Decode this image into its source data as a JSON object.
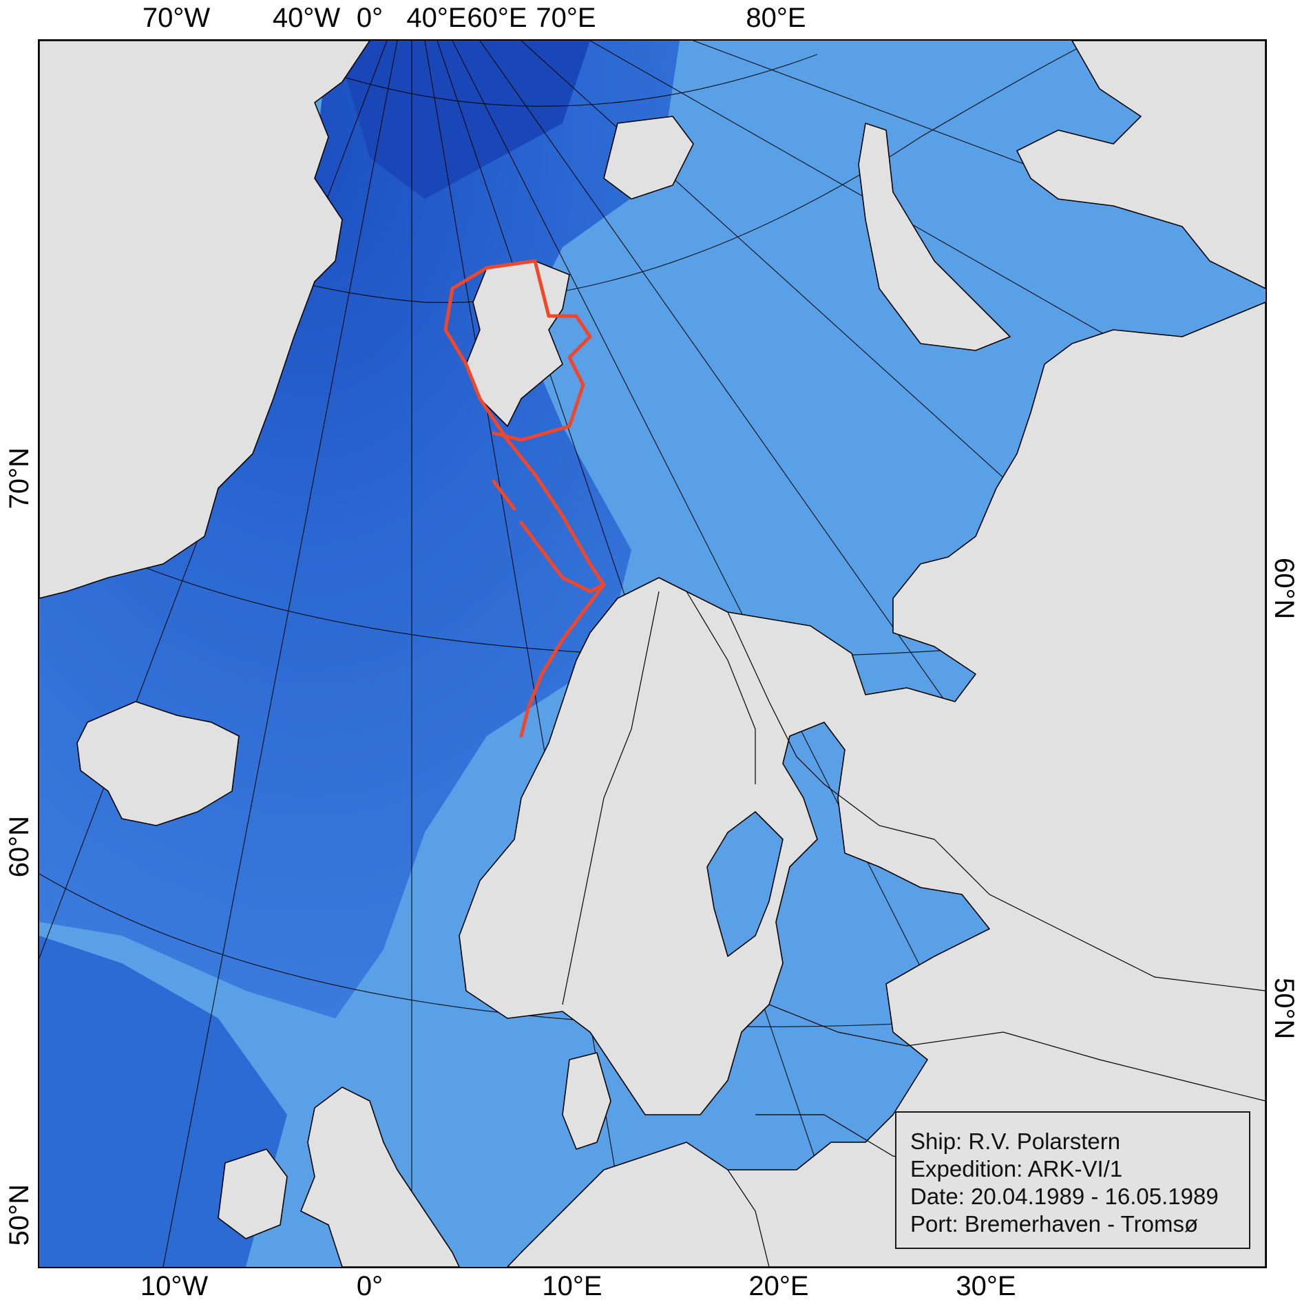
{
  "labels": {
    "top_lon": [
      "70°W",
      "40°W",
      "0°",
      "40°E",
      "60°E",
      "70°E",
      "80°E"
    ],
    "bottom_lon": [
      "10°W",
      "0°",
      "10°E",
      "20°E",
      "30°E"
    ],
    "left_lat": [
      "70°N",
      "60°N",
      "50°N"
    ],
    "right_lat": [
      "60°N",
      "50°N"
    ]
  },
  "legend": {
    "ship": "Ship: R.V. Polarstern",
    "expedition": "Expedition: ARK-VI/1",
    "date": "Date: 20.04.1989 - 16.05.1989",
    "port": "Port:  Bremerhaven - Tromsø"
  },
  "colors": {
    "land": "#e1e1e1",
    "shelf_sea": "#5aa0e6",
    "deep_sea": "#2f72d8",
    "abyss": "#1f55c4",
    "cruise_track": "#f0462a",
    "coastline": "#000000",
    "graticule": "#000000"
  },
  "map": {
    "track_name": "ARK-VI/1 cruise track"
  }
}
